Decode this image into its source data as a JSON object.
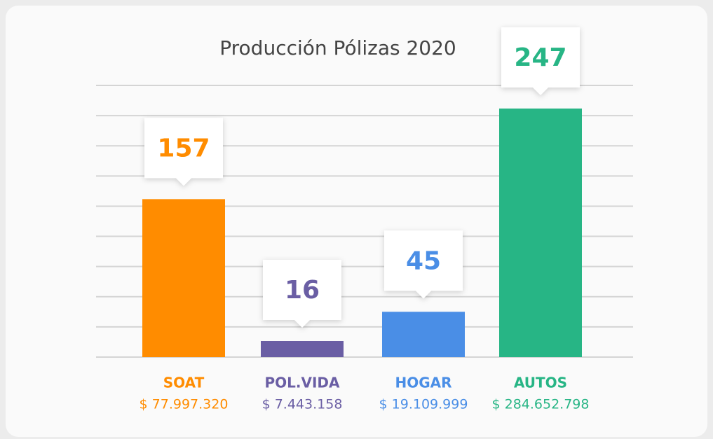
{
  "chart_data": {
    "type": "bar",
    "title": "Producción Pólizas 2020",
    "categories": [
      "SOAT",
      "POL.VIDA",
      "HOGAR",
      "AUTOS"
    ],
    "amounts": [
      "$ 77.997.320",
      "$ 7.443.158",
      "$ 19.109.999",
      "$ 284.652.798"
    ],
    "values": [
      157,
      16,
      45,
      247
    ],
    "colors": [
      "#ff8c00",
      "#6a5ea4",
      "#4a8ee6",
      "#27b585"
    ],
    "ylim": [
      0,
      270
    ],
    "grid": true
  }
}
